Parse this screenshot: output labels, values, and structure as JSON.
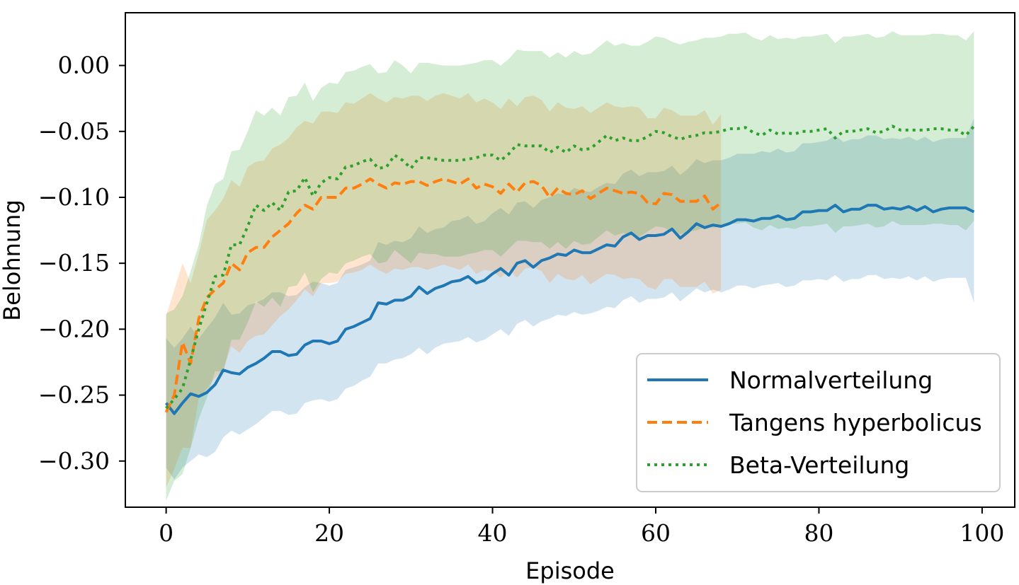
{
  "chart_data": {
    "type": "line",
    "xlabel": "Episode",
    "ylabel": "Belohnung",
    "xlim": [
      -5,
      104
    ],
    "ylim": [
      -0.335,
      0.04
    ],
    "xticks": [
      0,
      20,
      40,
      60,
      80,
      100
    ],
    "xtick_labels": [
      "0",
      "20",
      "40",
      "60",
      "80",
      "100"
    ],
    "yticks": [
      0.0,
      -0.05,
      -0.1,
      -0.15,
      -0.2,
      -0.25,
      -0.3
    ],
    "ytick_labels": [
      "0.00",
      "−0.05",
      "−0.10",
      "−0.15",
      "−0.20",
      "−0.25",
      "−0.30"
    ],
    "grid": false,
    "legend_position": "lower-right",
    "series": [
      {
        "name": "Normalverteilung",
        "color": "#1f77b4",
        "style": "solid",
        "x": [
          0,
          1,
          2,
          3,
          4,
          5,
          6,
          7,
          8,
          9,
          10,
          11,
          12,
          13,
          14,
          15,
          16,
          17,
          18,
          19,
          20,
          21,
          22,
          23,
          24,
          25,
          26,
          27,
          28,
          29,
          30,
          31,
          32,
          33,
          34,
          35,
          36,
          37,
          38,
          39,
          40,
          41,
          42,
          43,
          44,
          45,
          46,
          47,
          48,
          49,
          50,
          51,
          52,
          53,
          54,
          55,
          56,
          57,
          58,
          59,
          60,
          61,
          62,
          63,
          64,
          65,
          66,
          67,
          68,
          69,
          70,
          71,
          72,
          73,
          74,
          75,
          76,
          77,
          78,
          79,
          80,
          81,
          82,
          83,
          84,
          85,
          86,
          87,
          88,
          89,
          90,
          91,
          92,
          93,
          94,
          95,
          96,
          97,
          98,
          99
        ],
        "y": [
          -0.256,
          -0.264,
          -0.256,
          -0.249,
          -0.251,
          -0.248,
          -0.242,
          -0.231,
          -0.233,
          -0.234,
          -0.229,
          -0.226,
          -0.222,
          -0.217,
          -0.217,
          -0.22,
          -0.219,
          -0.212,
          -0.209,
          -0.209,
          -0.211,
          -0.209,
          -0.2,
          -0.198,
          -0.195,
          -0.192,
          -0.18,
          -0.181,
          -0.178,
          -0.178,
          -0.175,
          -0.168,
          -0.173,
          -0.169,
          -0.167,
          -0.164,
          -0.163,
          -0.16,
          -0.165,
          -0.163,
          -0.158,
          -0.154,
          -0.159,
          -0.15,
          -0.148,
          -0.153,
          -0.148,
          -0.146,
          -0.143,
          -0.144,
          -0.14,
          -0.142,
          -0.142,
          -0.139,
          -0.136,
          -0.137,
          -0.13,
          -0.127,
          -0.132,
          -0.129,
          -0.129,
          -0.128,
          -0.124,
          -0.131,
          -0.126,
          -0.12,
          -0.123,
          -0.121,
          -0.122,
          -0.12,
          -0.117,
          -0.117,
          -0.118,
          -0.116,
          -0.116,
          -0.114,
          -0.117,
          -0.116,
          -0.111,
          -0.111,
          -0.11,
          -0.11,
          -0.106,
          -0.111,
          -0.109,
          -0.109,
          -0.106,
          -0.106,
          -0.109,
          -0.108,
          -0.109,
          -0.107,
          -0.11,
          -0.107,
          -0.111,
          -0.109,
          -0.108,
          -0.108,
          -0.108,
          -0.111
        ],
        "lower": [
          -0.305,
          -0.314,
          -0.305,
          -0.3,
          -0.295,
          -0.297,
          -0.293,
          -0.282,
          -0.277,
          -0.28,
          -0.276,
          -0.272,
          -0.267,
          -0.262,
          -0.262,
          -0.265,
          -0.264,
          -0.256,
          -0.254,
          -0.253,
          -0.255,
          -0.253,
          -0.245,
          -0.243,
          -0.239,
          -0.236,
          -0.226,
          -0.226,
          -0.223,
          -0.222,
          -0.219,
          -0.214,
          -0.219,
          -0.214,
          -0.211,
          -0.21,
          -0.209,
          -0.206,
          -0.21,
          -0.208,
          -0.204,
          -0.2,
          -0.205,
          -0.196,
          -0.193,
          -0.198,
          -0.194,
          -0.192,
          -0.189,
          -0.19,
          -0.187,
          -0.189,
          -0.188,
          -0.186,
          -0.183,
          -0.184,
          -0.178,
          -0.175,
          -0.18,
          -0.177,
          -0.177,
          -0.176,
          -0.172,
          -0.179,
          -0.174,
          -0.169,
          -0.172,
          -0.17,
          -0.172,
          -0.17,
          -0.167,
          -0.167,
          -0.169,
          -0.167,
          -0.166,
          -0.165,
          -0.168,
          -0.167,
          -0.163,
          -0.163,
          -0.162,
          -0.163,
          -0.159,
          -0.164,
          -0.162,
          -0.162,
          -0.159,
          -0.159,
          -0.162,
          -0.161,
          -0.162,
          -0.16,
          -0.163,
          -0.16,
          -0.164,
          -0.162,
          -0.161,
          -0.161,
          -0.161,
          -0.18
        ],
        "upper": [
          -0.207,
          -0.214,
          -0.207,
          -0.198,
          -0.207,
          -0.199,
          -0.191,
          -0.18,
          -0.189,
          -0.188,
          -0.182,
          -0.18,
          -0.177,
          -0.172,
          -0.172,
          -0.175,
          -0.174,
          -0.168,
          -0.164,
          -0.165,
          -0.167,
          -0.165,
          -0.155,
          -0.153,
          -0.151,
          -0.148,
          -0.134,
          -0.136,
          -0.133,
          -0.134,
          -0.131,
          -0.122,
          -0.127,
          -0.124,
          -0.123,
          -0.118,
          -0.117,
          -0.114,
          -0.12,
          -0.118,
          -0.112,
          -0.108,
          -0.113,
          -0.104,
          -0.103,
          -0.108,
          -0.102,
          -0.1,
          -0.097,
          -0.098,
          -0.093,
          -0.095,
          -0.096,
          -0.092,
          -0.089,
          -0.09,
          -0.082,
          -0.079,
          -0.084,
          -0.081,
          -0.081,
          -0.08,
          -0.076,
          -0.083,
          -0.078,
          -0.071,
          -0.074,
          -0.072,
          -0.072,
          -0.07,
          -0.067,
          -0.067,
          -0.067,
          -0.065,
          -0.066,
          -0.063,
          -0.066,
          -0.065,
          -0.059,
          -0.059,
          -0.058,
          -0.057,
          -0.053,
          -0.058,
          -0.056,
          -0.056,
          -0.053,
          -0.053,
          -0.056,
          -0.055,
          -0.056,
          -0.054,
          -0.057,
          -0.054,
          -0.058,
          -0.056,
          -0.055,
          -0.055,
          -0.055,
          -0.04
        ]
      },
      {
        "name": "Tangens hyperbolicus",
        "color": "#ff7f0e",
        "style": "dashed",
        "x": [
          0,
          1,
          2,
          3,
          4,
          5,
          6,
          7,
          8,
          9,
          10,
          11,
          12,
          13,
          14,
          15,
          16,
          17,
          18,
          19,
          20,
          21,
          22,
          23,
          24,
          25,
          26,
          27,
          28,
          29,
          30,
          31,
          32,
          33,
          34,
          35,
          36,
          37,
          38,
          39,
          40,
          41,
          42,
          43,
          44,
          45,
          46,
          47,
          48,
          49,
          50,
          51,
          52,
          53,
          54,
          55,
          56,
          57,
          58,
          59,
          60,
          61,
          62,
          63,
          64,
          65,
          66,
          67,
          68
        ],
        "y": [
          -0.263,
          -0.25,
          -0.21,
          -0.226,
          -0.192,
          -0.176,
          -0.17,
          -0.165,
          -0.15,
          -0.155,
          -0.142,
          -0.138,
          -0.138,
          -0.13,
          -0.125,
          -0.12,
          -0.112,
          -0.106,
          -0.109,
          -0.1,
          -0.1,
          -0.1,
          -0.093,
          -0.093,
          -0.09,
          -0.086,
          -0.09,
          -0.093,
          -0.089,
          -0.09,
          -0.088,
          -0.088,
          -0.091,
          -0.088,
          -0.086,
          -0.088,
          -0.09,
          -0.086,
          -0.093,
          -0.09,
          -0.092,
          -0.097,
          -0.09,
          -0.096,
          -0.089,
          -0.088,
          -0.091,
          -0.1,
          -0.093,
          -0.097,
          -0.098,
          -0.095,
          -0.101,
          -0.097,
          -0.093,
          -0.095,
          -0.097,
          -0.096,
          -0.097,
          -0.104,
          -0.105,
          -0.097,
          -0.098,
          -0.103,
          -0.103,
          -0.103,
          -0.099,
          -0.109,
          -0.104
        ],
        "lower": [
          -0.32,
          -0.306,
          -0.29,
          -0.29,
          -0.252,
          -0.245,
          -0.237,
          -0.231,
          -0.213,
          -0.218,
          -0.209,
          -0.205,
          -0.204,
          -0.197,
          -0.19,
          -0.185,
          -0.178,
          -0.17,
          -0.175,
          -0.165,
          -0.165,
          -0.164,
          -0.158,
          -0.157,
          -0.155,
          -0.151,
          -0.155,
          -0.158,
          -0.154,
          -0.155,
          -0.153,
          -0.153,
          -0.155,
          -0.153,
          -0.151,
          -0.153,
          -0.155,
          -0.151,
          -0.158,
          -0.155,
          -0.156,
          -0.161,
          -0.155,
          -0.161,
          -0.154,
          -0.153,
          -0.156,
          -0.165,
          -0.158,
          -0.162,
          -0.163,
          -0.159,
          -0.166,
          -0.162,
          -0.158,
          -0.159,
          -0.162,
          -0.161,
          -0.162,
          -0.168,
          -0.17,
          -0.162,
          -0.162,
          -0.168,
          -0.168,
          -0.168,
          -0.164,
          -0.173,
          -0.17
        ],
        "upper": [
          -0.19,
          -0.17,
          -0.15,
          -0.165,
          -0.143,
          -0.117,
          -0.11,
          -0.101,
          -0.087,
          -0.092,
          -0.077,
          -0.073,
          -0.072,
          -0.063,
          -0.06,
          -0.055,
          -0.047,
          -0.042,
          -0.044,
          -0.035,
          -0.035,
          -0.036,
          -0.028,
          -0.029,
          -0.025,
          -0.021,
          -0.025,
          -0.028,
          -0.024,
          -0.025,
          -0.023,
          -0.023,
          -0.027,
          -0.023,
          -0.021,
          -0.023,
          -0.025,
          -0.021,
          -0.028,
          -0.025,
          -0.028,
          -0.033,
          -0.025,
          -0.031,
          -0.024,
          -0.023,
          -0.026,
          -0.035,
          -0.028,
          -0.032,
          -0.033,
          -0.031,
          -0.036,
          -0.032,
          -0.028,
          -0.031,
          -0.032,
          -0.031,
          -0.032,
          -0.04,
          -0.04,
          -0.032,
          -0.034,
          -0.038,
          -0.038,
          -0.038,
          -0.034,
          -0.045,
          -0.037
        ]
      },
      {
        "name": "Beta-Verteilung",
        "color": "#2ca02c",
        "style": "dotted",
        "x": [
          0,
          1,
          2,
          3,
          4,
          5,
          6,
          7,
          8,
          9,
          10,
          11,
          12,
          13,
          14,
          15,
          16,
          17,
          18,
          19,
          20,
          21,
          22,
          23,
          24,
          25,
          26,
          27,
          28,
          29,
          30,
          31,
          32,
          33,
          34,
          35,
          36,
          37,
          38,
          39,
          40,
          41,
          42,
          43,
          44,
          45,
          46,
          47,
          48,
          49,
          50,
          51,
          52,
          53,
          54,
          55,
          56,
          57,
          58,
          59,
          60,
          61,
          62,
          63,
          64,
          65,
          66,
          67,
          68,
          69,
          70,
          71,
          72,
          73,
          74,
          75,
          76,
          77,
          78,
          79,
          80,
          81,
          82,
          83,
          84,
          85,
          86,
          87,
          88,
          89,
          90,
          91,
          92,
          93,
          94,
          95,
          96,
          97,
          98,
          99
        ],
        "y": [
          -0.26,
          -0.253,
          -0.245,
          -0.223,
          -0.2,
          -0.18,
          -0.16,
          -0.159,
          -0.136,
          -0.136,
          -0.122,
          -0.106,
          -0.11,
          -0.104,
          -0.11,
          -0.096,
          -0.095,
          -0.085,
          -0.099,
          -0.089,
          -0.085,
          -0.086,
          -0.077,
          -0.076,
          -0.073,
          -0.071,
          -0.078,
          -0.077,
          -0.068,
          -0.072,
          -0.078,
          -0.07,
          -0.07,
          -0.071,
          -0.072,
          -0.072,
          -0.072,
          -0.071,
          -0.07,
          -0.068,
          -0.068,
          -0.072,
          -0.067,
          -0.06,
          -0.061,
          -0.061,
          -0.061,
          -0.066,
          -0.062,
          -0.066,
          -0.061,
          -0.064,
          -0.063,
          -0.058,
          -0.053,
          -0.057,
          -0.055,
          -0.057,
          -0.057,
          -0.054,
          -0.05,
          -0.051,
          -0.054,
          -0.056,
          -0.054,
          -0.053,
          -0.051,
          -0.051,
          -0.05,
          -0.048,
          -0.048,
          -0.047,
          -0.051,
          -0.053,
          -0.049,
          -0.052,
          -0.051,
          -0.052,
          -0.05,
          -0.05,
          -0.049,
          -0.048,
          -0.055,
          -0.05,
          -0.05,
          -0.049,
          -0.048,
          -0.051,
          -0.05,
          -0.046,
          -0.049,
          -0.049,
          -0.049,
          -0.049,
          -0.048,
          -0.048,
          -0.049,
          -0.049,
          -0.053,
          -0.046
        ],
        "lower": [
          -0.33,
          -0.315,
          -0.31,
          -0.29,
          -0.268,
          -0.252,
          -0.232,
          -0.232,
          -0.208,
          -0.208,
          -0.195,
          -0.179,
          -0.183,
          -0.176,
          -0.183,
          -0.168,
          -0.167,
          -0.157,
          -0.172,
          -0.162,
          -0.157,
          -0.158,
          -0.15,
          -0.148,
          -0.145,
          -0.143,
          -0.15,
          -0.149,
          -0.14,
          -0.145,
          -0.15,
          -0.142,
          -0.143,
          -0.143,
          -0.145,
          -0.145,
          -0.145,
          -0.143,
          -0.142,
          -0.14,
          -0.14,
          -0.145,
          -0.139,
          -0.133,
          -0.133,
          -0.134,
          -0.134,
          -0.139,
          -0.134,
          -0.139,
          -0.133,
          -0.136,
          -0.135,
          -0.13,
          -0.125,
          -0.129,
          -0.127,
          -0.129,
          -0.13,
          -0.126,
          -0.122,
          -0.123,
          -0.126,
          -0.128,
          -0.126,
          -0.125,
          -0.123,
          -0.123,
          -0.122,
          -0.12,
          -0.12,
          -0.119,
          -0.123,
          -0.125,
          -0.121,
          -0.124,
          -0.123,
          -0.124,
          -0.122,
          -0.122,
          -0.121,
          -0.12,
          -0.127,
          -0.122,
          -0.122,
          -0.121,
          -0.12,
          -0.123,
          -0.122,
          -0.118,
          -0.121,
          -0.121,
          -0.121,
          -0.121,
          -0.12,
          -0.12,
          -0.121,
          -0.121,
          -0.125,
          -0.118
        ],
        "upper": [
          -0.188,
          -0.185,
          -0.175,
          -0.156,
          -0.136,
          -0.106,
          -0.09,
          -0.086,
          -0.065,
          -0.064,
          -0.05,
          -0.034,
          -0.038,
          -0.032,
          -0.038,
          -0.024,
          -0.023,
          -0.013,
          -0.027,
          -0.017,
          -0.013,
          -0.014,
          -0.005,
          -0.004,
          -0.001,
          0.001,
          -0.006,
          -0.005,
          0.004,
          -0.0,
          -0.006,
          0.002,
          0.002,
          0.001,
          -0.0,
          -0.0,
          -0.0,
          0.001,
          0.002,
          0.004,
          0.004,
          -0.0,
          0.005,
          0.012,
          0.011,
          0.011,
          0.011,
          0.006,
          0.01,
          0.006,
          0.011,
          0.008,
          0.009,
          0.014,
          0.019,
          0.015,
          0.017,
          0.015,
          0.015,
          0.018,
          0.022,
          0.021,
          0.018,
          0.016,
          0.018,
          0.019,
          0.021,
          0.021,
          0.022,
          0.024,
          0.024,
          0.025,
          0.021,
          0.019,
          0.023,
          0.02,
          0.021,
          0.02,
          0.022,
          0.022,
          0.023,
          0.024,
          0.017,
          0.022,
          0.022,
          0.023,
          0.024,
          0.021,
          0.022,
          0.026,
          0.023,
          0.023,
          0.023,
          0.023,
          0.024,
          0.024,
          0.023,
          0.023,
          0.019,
          0.026
        ]
      }
    ]
  }
}
